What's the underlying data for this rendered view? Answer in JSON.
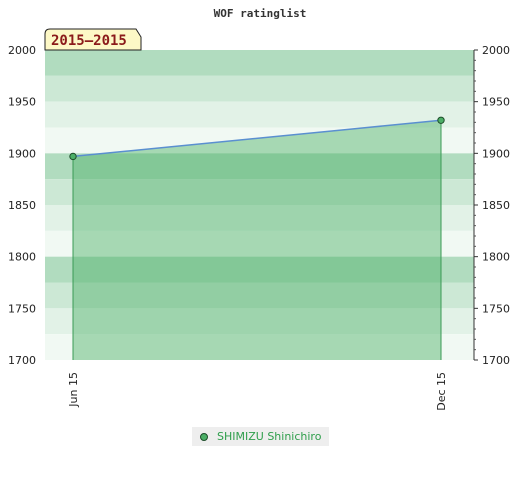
{
  "chart_data": {
    "type": "area",
    "title": "WOF ratinglist",
    "period_label": "2015—2015",
    "x": [
      "Jun 15",
      "Dec 15"
    ],
    "series": [
      {
        "name": "SHIMIZU Shinichiro",
        "values": [
          1897,
          1932
        ]
      }
    ],
    "ylim": [
      1700,
      2000
    ],
    "y_ticks": [
      1700,
      1750,
      1800,
      1850,
      1900,
      1950,
      2000
    ],
    "legend_position": "bottom",
    "grid": true,
    "colors": {
      "band_dark": "#b1dcbf",
      "band_mid": "#cce8d5",
      "band_light": "#e2f2e7",
      "band_lightest": "#f1f9f3",
      "area_fill": "#4caf67",
      "line": "#5a8fd0",
      "point": "#4caf67"
    }
  }
}
